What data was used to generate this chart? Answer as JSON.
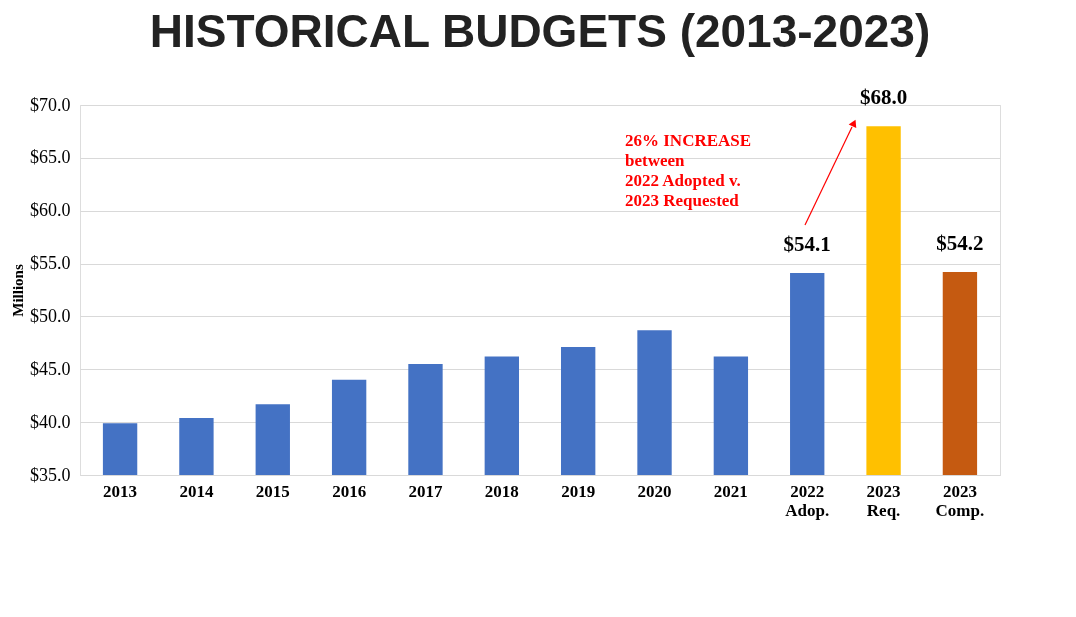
{
  "chart_data": {
    "type": "bar",
    "title": "HISTORICAL BUDGETS (2013-2023)",
    "ylabel": "Millions",
    "categories": [
      "2013",
      "2014",
      "2015",
      "2016",
      "2017",
      "2018",
      "2019",
      "2020",
      "2021",
      "2022\nAdop.",
      "2023\nReq.",
      "2023\nComp."
    ],
    "values": [
      39.9,
      40.4,
      41.7,
      44.0,
      45.5,
      46.2,
      47.1,
      48.7,
      46.2,
      54.1,
      68.0,
      54.2
    ],
    "colors": [
      "#4472c4",
      "#4472c4",
      "#4472c4",
      "#4472c4",
      "#4472c4",
      "#4472c4",
      "#4472c4",
      "#4472c4",
      "#4472c4",
      "#4472c4",
      "#ffc000",
      "#c55a11"
    ],
    "value_labels": [
      null,
      null,
      null,
      null,
      null,
      null,
      null,
      null,
      null,
      "$54.1",
      "$68.0",
      "$54.2"
    ],
    "ylim": [
      35,
      70
    ],
    "yticks": [
      {
        "value": 35,
        "label": "$35.0"
      },
      {
        "value": 40,
        "label": "$40.0"
      },
      {
        "value": 45,
        "label": "$45.0"
      },
      {
        "value": 50,
        "label": "$50.0"
      },
      {
        "value": 55,
        "label": "$55.0"
      },
      {
        "value": 60,
        "label": "$60.0"
      },
      {
        "value": 65,
        "label": "$65.0"
      },
      {
        "value": 70,
        "label": "$70.0"
      }
    ],
    "grid": "y",
    "annotations": [
      "26% INCREASE\nbetween\n2022 Adopted v.\n2023 Requested"
    ]
  }
}
